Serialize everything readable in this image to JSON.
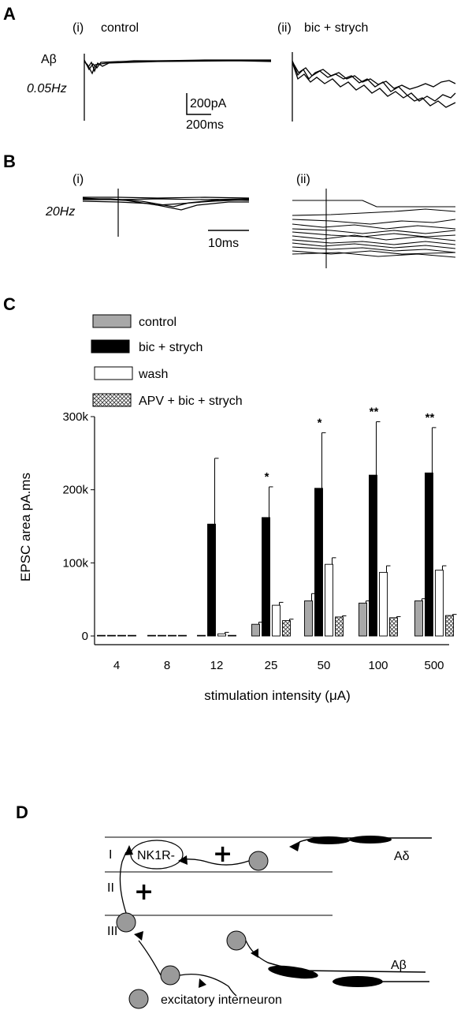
{
  "panel_a": {
    "letter": "A",
    "sub_i": "(i)",
    "sub_i_label": "control",
    "sub_ii": "(ii)",
    "sub_ii_label": "bic + strych",
    "row_label": "Aβ",
    "freq_label": "0.05Hz",
    "scale_current": "200pA",
    "scale_time": "200ms"
  },
  "panel_b": {
    "letter": "B",
    "sub_i": "(i)",
    "sub_ii": "(ii)",
    "freq_label": "20Hz",
    "scale_time": "10ms"
  },
  "panel_c": {
    "letter": "C"
  },
  "panel_d": {
    "letter": "D",
    "lamina_i": "I",
    "lamina_ii": "II",
    "lamina_iii": "III",
    "nk1r_label": "NK1R-",
    "plus_sign": "+",
    "adelta_label": "Aδ",
    "abeta_label": "Aβ",
    "legend_label": "excitatory interneuron",
    "colors": {
      "neuron_fill": "#9a9a9a"
    }
  },
  "chart_data": {
    "type": "bar",
    "categories": [
      "4",
      "8",
      "12",
      "25",
      "50",
      "100",
      "500"
    ],
    "xlabel": "stimulation intensity (μA)",
    "ylabel": "EPSC area pA.ms",
    "ylim": [
      0,
      300000
    ],
    "yticks": [
      0,
      100000,
      200000,
      300000
    ],
    "ytick_labels": [
      "0",
      "100k",
      "200k",
      "300k"
    ],
    "legend_placement": "top-left",
    "series": [
      {
        "name": "control",
        "style": "gray",
        "color": "#a8a8a8",
        "values": [
          500,
          500,
          200,
          16000,
          48000,
          45000,
          48000
        ],
        "errors": [
          300,
          300,
          100,
          3000,
          10000,
          3000,
          3000
        ]
      },
      {
        "name": "bic + strych",
        "style": "black",
        "color": "#000000",
        "values": [
          500,
          500,
          153000,
          162000,
          202000,
          220000,
          223000
        ],
        "errors": [
          300,
          300,
          90000,
          42000,
          76000,
          73000,
          62000
        ]
      },
      {
        "name": "wash",
        "style": "white",
        "color": "#ffffff",
        "values": [
          500,
          500,
          3000,
          42000,
          98000,
          87000,
          90000
        ],
        "errors": [
          300,
          300,
          2000,
          4000,
          9000,
          9000,
          6000
        ]
      },
      {
        "name": "APV + bic + strych",
        "style": "hatch",
        "color": "#ffffff",
        "values": [
          300,
          300,
          200,
          21000,
          26000,
          25000,
          28000
        ],
        "errors": [
          200,
          200,
          100,
          2000,
          1500,
          1500,
          1500
        ]
      }
    ],
    "annotations": [
      {
        "category": "25",
        "text": "*"
      },
      {
        "category": "50",
        "text": "*"
      },
      {
        "category": "100",
        "text": "**"
      },
      {
        "category": "500",
        "text": "**"
      }
    ]
  }
}
